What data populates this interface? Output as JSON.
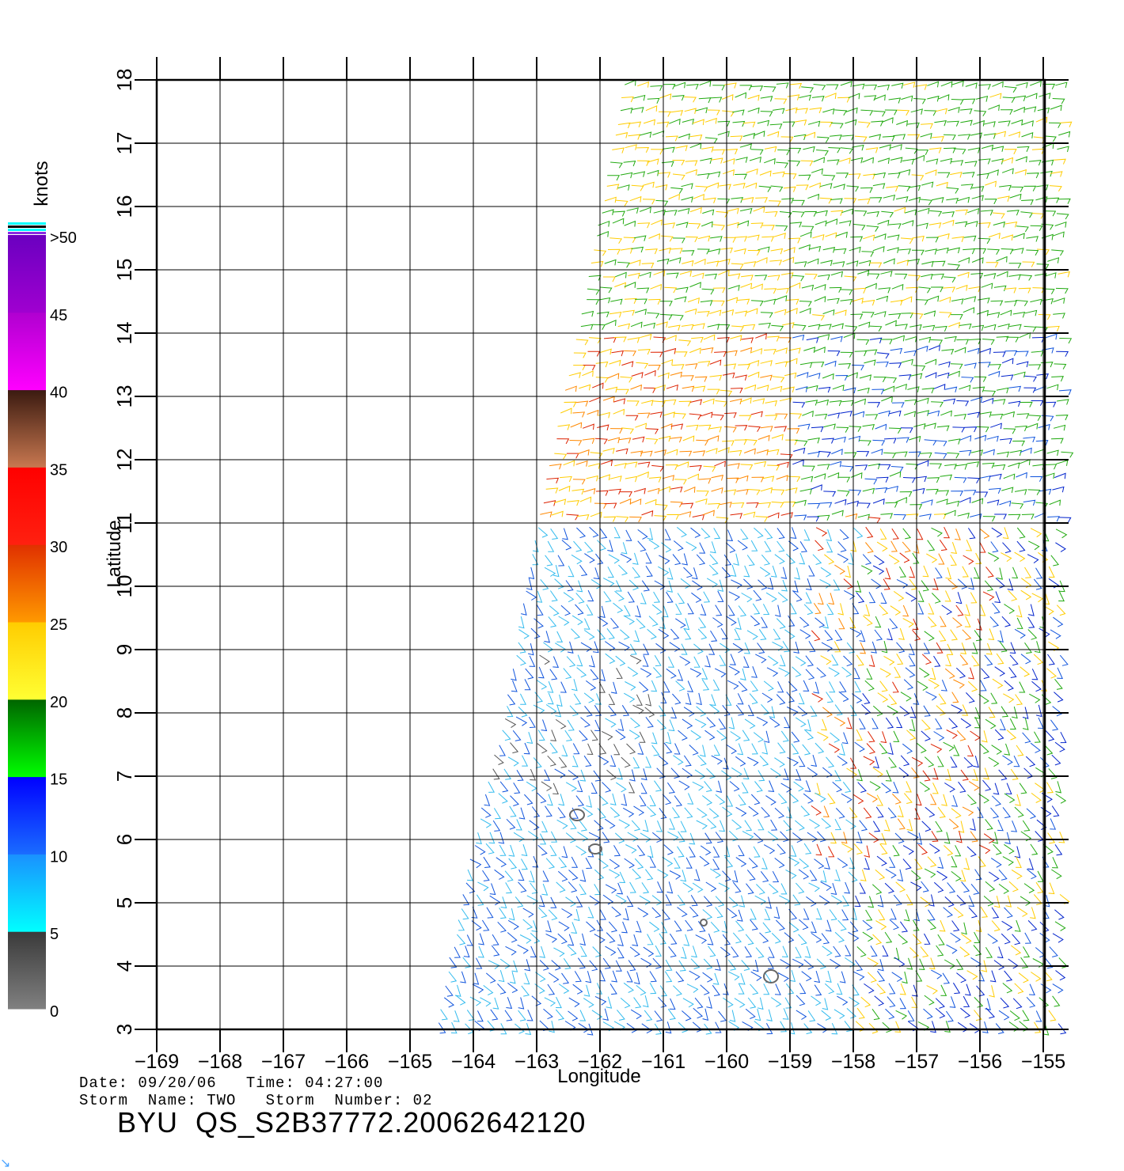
{
  "map": {
    "x_axis_label": "Longitude",
    "y_axis_label": "Latitude",
    "lon_ticks": [
      "−169",
      "−168",
      "−167",
      "−166",
      "−165",
      "−164",
      "−163",
      "−162",
      "−161",
      "−160",
      "−159",
      "−158",
      "−157",
      "−156",
      "−155"
    ],
    "lat_ticks": [
      "3",
      "4",
      "5",
      "6",
      "7",
      "8",
      "9",
      "10",
      "11",
      "12",
      "13",
      "14",
      "15",
      "16",
      "17",
      "18"
    ],
    "lon_range": [
      -169,
      -154.6
    ],
    "lat_range": [
      3,
      18
    ],
    "grid": true,
    "content": "QuikSCAT scatterometer wind barbs colored by speed"
  },
  "colorbar": {
    "units_label": "knots",
    "labels": [
      "0",
      "5",
      "10",
      "15",
      "20",
      "25",
      "30",
      "35",
      "40",
      "45",
      ">50"
    ],
    "bands": [
      {
        "from": 0,
        "to": 5,
        "top": "#3a3a3a",
        "bottom": "#808080"
      },
      {
        "from": 5,
        "to": 10,
        "top": "#1a90ff",
        "bottom": "#00ffff"
      },
      {
        "from": 10,
        "to": 15,
        "top": "#0000ff",
        "bottom": "#1a6cff"
      },
      {
        "from": 15,
        "to": 20,
        "top": "#006400",
        "bottom": "#00ff00"
      },
      {
        "from": 20,
        "to": 25,
        "top": "#ffcc00",
        "bottom": "#ffff33"
      },
      {
        "from": 25,
        "to": 30,
        "top": "#e03000",
        "bottom": "#ff9900"
      },
      {
        "from": 30,
        "to": 35,
        "top": "#ff0000",
        "bottom": "#ff2010"
      },
      {
        "from": 35,
        "to": 40,
        "top": "#3a1a10",
        "bottom": "#c87850"
      },
      {
        "from": 40,
        "to": 45,
        "top": "#b000d0",
        "bottom": "#ff00ff"
      },
      {
        "from": 45,
        "to": 50,
        "top": "#6a00c0",
        "bottom": "#a000d0"
      }
    ]
  },
  "colors": {
    "calm": "#555555",
    "light_blue": "#33bbee",
    "blue": "#1155dd",
    "dark_blue": "#0022cc",
    "green": "#22aa11",
    "yellow": "#ffcc00",
    "orange": "#ff8800",
    "red": "#dd2200"
  },
  "footer": {
    "date_line": "Date: 09/20/06   Time: 04:27:00",
    "storm_line": "Storm  Name: TWO   Storm  Number: 02",
    "product_id": "BYU  QS_S2B37772.20062642120"
  },
  "corner_glyph": "↘"
}
